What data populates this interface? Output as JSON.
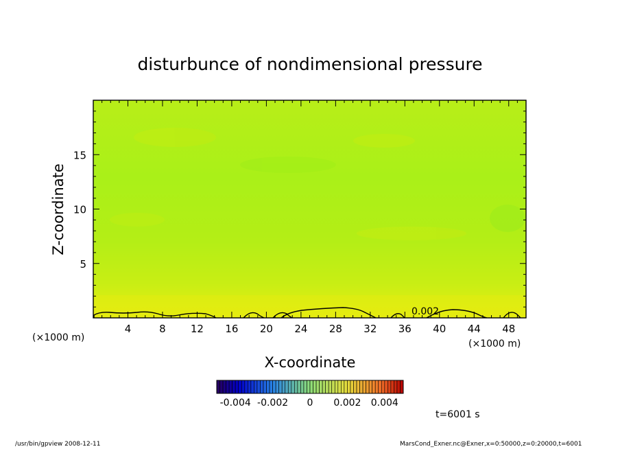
{
  "chart_data": {
    "type": "heatmap",
    "title": "disturbunce of nondimensional pressure",
    "xlabel": "X-coordinate",
    "ylabel": "Z-coordinate",
    "x_unit": "(×1000 m)",
    "xlim": [
      0,
      50
    ],
    "ylim": [
      0,
      20
    ],
    "x_ticks": [
      4,
      8,
      12,
      16,
      20,
      24,
      28,
      32,
      36,
      40,
      44,
      48
    ],
    "y_ticks": [
      5,
      10,
      15
    ],
    "contour_label": "0.002",
    "contour_level": 0.002,
    "colorbar": {
      "min": -0.005,
      "max": 0.005,
      "tick_labels": [
        "-0.004",
        "-0.002",
        "0",
        "0.002",
        "0.004"
      ],
      "tick_values": [
        -0.004,
        -0.002,
        0,
        0.002,
        0.004
      ]
    },
    "field_summary": {
      "near_surface_value": 0.002,
      "upper_value": 0.0005
    }
  },
  "time_label": "t=6001 s",
  "footer": {
    "left": "/usr/bin/gpview  2008-12-11",
    "right": "MarsCond_Exner.nc@Exner,x=0:50000,z=0:20000,t=6001"
  }
}
